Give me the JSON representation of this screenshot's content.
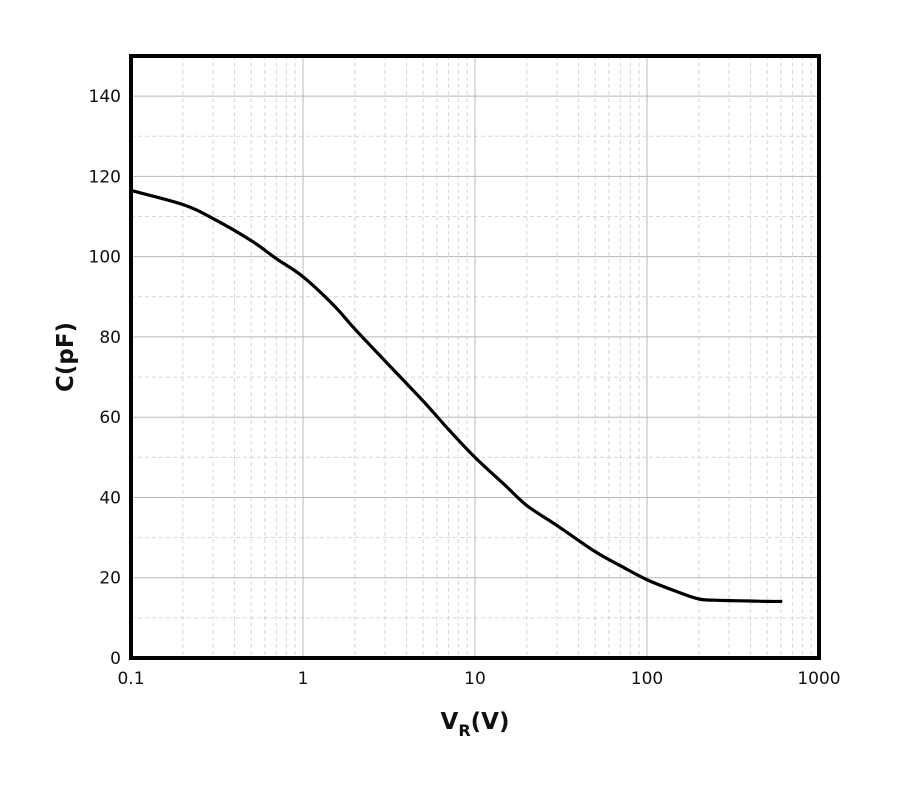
{
  "chart_data": {
    "type": "line",
    "title": "",
    "xlabel": {
      "main": "V",
      "sub": "R",
      "unit": "(V)"
    },
    "ylabel": "C(pF)",
    "xscale": "log",
    "xlim": [
      0.1,
      1000
    ],
    "ylim": [
      0,
      150
    ],
    "xticks": [
      0.1,
      1,
      10,
      100,
      1000
    ],
    "xtick_labels": [
      "0.1",
      "1",
      "10",
      "100",
      "1000"
    ],
    "yticks": [
      0,
      20,
      40,
      60,
      80,
      100,
      120,
      140
    ],
    "ytick_labels": [
      "0",
      "20",
      "40",
      "60",
      "80",
      "100",
      "120",
      "140"
    ],
    "grid": true,
    "legend": "none",
    "series": [
      {
        "color": "#000000",
        "x": [
          0.1,
          0.2,
          0.3,
          0.5,
          0.7,
          1,
          1.5,
          2,
          3,
          5,
          7,
          10,
          15,
          20,
          30,
          50,
          70,
          100,
          150,
          200,
          250,
          300,
          400,
          500,
          600
        ],
        "y": [
          116.5,
          113,
          109.5,
          104,
          99.5,
          95,
          88,
          82,
          74,
          64,
          57,
          50,
          43,
          38,
          33,
          26.5,
          23,
          19.5,
          16.5,
          14.7,
          14.4,
          14.3,
          14.2,
          14.1,
          14.1
        ]
      }
    ]
  }
}
